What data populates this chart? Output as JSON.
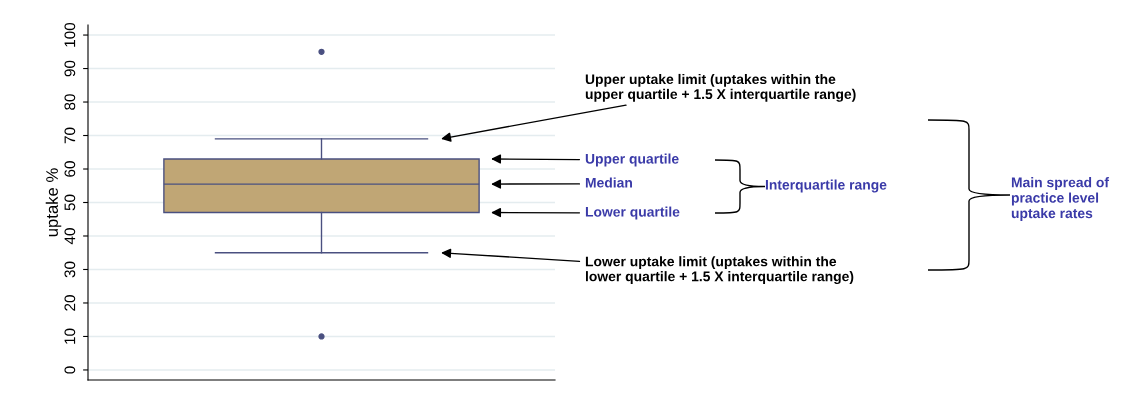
{
  "chart_data": {
    "type": "box",
    "ylabel": "uptake %",
    "categories": [
      null
    ],
    "color": "#c0a675",
    "boxes": [
      {
        "low": 35,
        "q1": 47,
        "median": 55.5,
        "q3": 63,
        "high": 69,
        "outliers": [
          95,
          10
        ]
      }
    ],
    "ylim": [
      -3,
      103
    ],
    "yticks": [
      0,
      10,
      20,
      30,
      40,
      50,
      60,
      70,
      80,
      90,
      100
    ],
    "grid": "y",
    "tick_labels": "y",
    "annotations": [
      "Upper uptake limit (uptakes within the\nupper quartile + 1.5 X interquartile range)",
      "Upper quartile",
      "Median",
      "Lower quartile",
      "Lower uptake limit (uptakes within the\nlower quartile + 1.5 X interquartile range)",
      "Interquartile range",
      "Main spread of\npractice level\nuptake rates"
    ]
  }
}
